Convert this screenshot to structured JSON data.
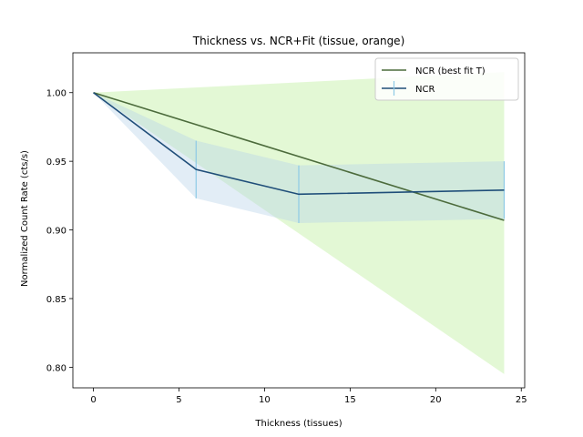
{
  "chart_data": {
    "type": "line",
    "title": "Thickness vs. NCR+Fit (tissue, orange)",
    "xlabel": "Thickness (tissues)",
    "ylabel": "Normalized Count Rate (cts/s)",
    "xlim": [
      -1.2,
      25.2
    ],
    "ylim": [
      0.785,
      1.029
    ],
    "xticks": [
      0,
      5,
      10,
      15,
      20,
      25
    ],
    "yticks": [
      0.8,
      0.85,
      0.9,
      0.95,
      1.0
    ],
    "ytick_labels": [
      "0.80",
      "0.85",
      "0.90",
      "0.95",
      "1.00"
    ],
    "grid": false,
    "legend_position": "top-right",
    "series": [
      {
        "name": "NCR (best fit T)",
        "color": "#4c6b3c",
        "band_color": "#ccf2b3",
        "x": [
          0,
          24
        ],
        "y": [
          1.0,
          0.907
        ],
        "band_upper": [
          1.0,
          1.015
        ],
        "band_lower": [
          1.0,
          0.795
        ]
      },
      {
        "name": "NCR",
        "color": "#1f4e79",
        "band_color": "#b7d1e8",
        "errorbar_color": "#8ecae6",
        "x": [
          0,
          6,
          12,
          24
        ],
        "y": [
          1.0,
          0.944,
          0.926,
          0.929
        ],
        "yerr": [
          0.0,
          0.021,
          0.021,
          0.021
        ]
      }
    ]
  }
}
